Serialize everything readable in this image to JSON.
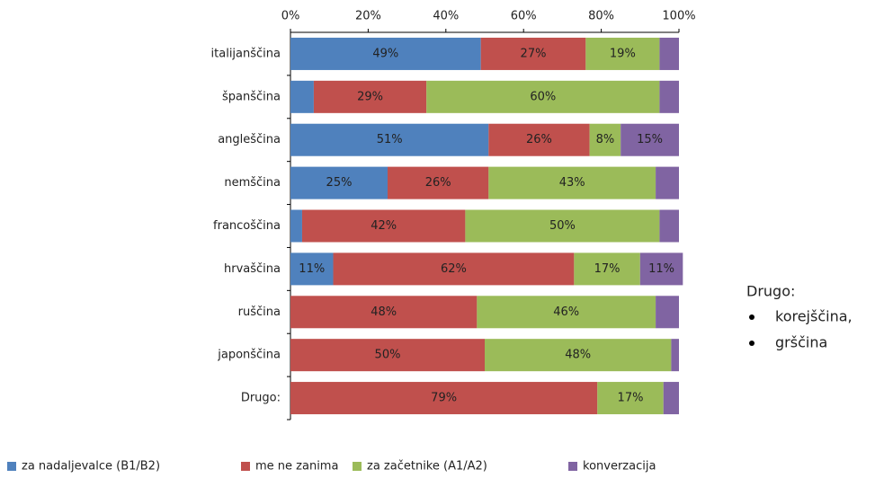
{
  "chart_data": {
    "type": "bar",
    "orientation": "horizontal",
    "stacked": true,
    "categories": [
      "italijanščina",
      "španščina",
      "angleščina",
      "nemščina",
      "francoščina",
      "hrvaščina",
      "ruščina",
      "japonščina",
      "Drugo:"
    ],
    "series": [
      {
        "name": "za nadaljevalce (B1/B2)",
        "color": "#4f81bd",
        "values": [
          49,
          6,
          51,
          25,
          3,
          11,
          0,
          0,
          0
        ],
        "value_labels": [
          "49%",
          null,
          "51%",
          "25%",
          null,
          "11%",
          null,
          null,
          null
        ]
      },
      {
        "name": "me ne zanima",
        "color": "#c0504d",
        "values": [
          27,
          29,
          26,
          26,
          42,
          62,
          48,
          50,
          79
        ],
        "value_labels": [
          "27%",
          "29%",
          "26%",
          "26%",
          "42%",
          "62%",
          "48%",
          "50%",
          "79%"
        ]
      },
      {
        "name": "za začetnike (A1/A2)",
        "color": "#9bbb59",
        "values": [
          19,
          60,
          8,
          43,
          50,
          17,
          46,
          48,
          17
        ],
        "value_labels": [
          "19%",
          "60%",
          "8%",
          "43%",
          "50%",
          "17%",
          "46%",
          "48%",
          "17%"
        ]
      },
      {
        "name": "konverzacija",
        "color": "#8064a2",
        "values": [
          5,
          5,
          15,
          6,
          5,
          11,
          6,
          2,
          4
        ],
        "value_labels": [
          null,
          null,
          "15%",
          null,
          null,
          "11%",
          null,
          null,
          null
        ]
      }
    ],
    "xlim": [
      0,
      100
    ],
    "xticks": [
      {
        "value": 0,
        "label": "0%"
      },
      {
        "value": 20,
        "label": "20%"
      },
      {
        "value": 40,
        "label": "40%"
      },
      {
        "value": 60,
        "label": "60%"
      },
      {
        "value": 80,
        "label": "80%"
      },
      {
        "value": 100,
        "label": "100%"
      }
    ],
    "annotation_title": "Drugo:",
    "annotation_items": [
      "korejščina,",
      "grščina"
    ]
  }
}
